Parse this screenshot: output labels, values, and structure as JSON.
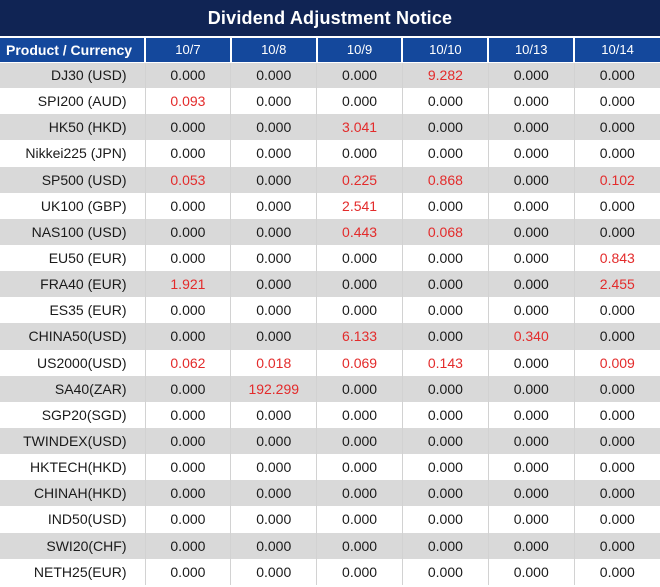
{
  "chart_data": {
    "type": "table",
    "title": "Dividend Adjustment Notice",
    "product_header": "Product / Currency",
    "date_headers": [
      "10/7",
      "10/8",
      "10/9",
      "10/10",
      "10/13",
      "10/14"
    ],
    "rows": [
      {
        "product": "DJ30 (USD)",
        "values": [
          "0.000",
          "0.000",
          "0.000",
          "9.282",
          "0.000",
          "0.000"
        ],
        "red_cols": [
          3
        ]
      },
      {
        "product": "SPI200 (AUD)",
        "values": [
          "0.093",
          "0.000",
          "0.000",
          "0.000",
          "0.000",
          "0.000"
        ],
        "red_cols": [
          0
        ]
      },
      {
        "product": "HK50 (HKD)",
        "values": [
          "0.000",
          "0.000",
          "3.041",
          "0.000",
          "0.000",
          "0.000"
        ],
        "red_cols": [
          2
        ]
      },
      {
        "product": "Nikkei225 (JPN)",
        "values": [
          "0.000",
          "0.000",
          "0.000",
          "0.000",
          "0.000",
          "0.000"
        ],
        "red_cols": []
      },
      {
        "product": "SP500 (USD)",
        "values": [
          "0.053",
          "0.000",
          "0.225",
          "0.868",
          "0.000",
          "0.102"
        ],
        "red_cols": [
          0,
          2,
          3,
          5
        ]
      },
      {
        "product": "UK100 (GBP)",
        "values": [
          "0.000",
          "0.000",
          "2.541",
          "0.000",
          "0.000",
          "0.000"
        ],
        "red_cols": [
          2
        ]
      },
      {
        "product": "NAS100 (USD)",
        "values": [
          "0.000",
          "0.000",
          "0.443",
          "0.068",
          "0.000",
          "0.000"
        ],
        "red_cols": [
          2,
          3
        ]
      },
      {
        "product": "EU50 (EUR)",
        "values": [
          "0.000",
          "0.000",
          "0.000",
          "0.000",
          "0.000",
          "0.843"
        ],
        "red_cols": [
          5
        ]
      },
      {
        "product": "FRA40 (EUR)",
        "values": [
          "1.921",
          "0.000",
          "0.000",
          "0.000",
          "0.000",
          "2.455"
        ],
        "red_cols": [
          0,
          5
        ]
      },
      {
        "product": "ES35 (EUR)",
        "values": [
          "0.000",
          "0.000",
          "0.000",
          "0.000",
          "0.000",
          "0.000"
        ],
        "red_cols": []
      },
      {
        "product": "CHINA50(USD)",
        "values": [
          "0.000",
          "0.000",
          "6.133",
          "0.000",
          "0.340",
          "0.000"
        ],
        "red_cols": [
          2,
          4
        ]
      },
      {
        "product": "US2000(USD)",
        "values": [
          "0.062",
          "0.018",
          "0.069",
          "0.143",
          "0.000",
          "0.009"
        ],
        "red_cols": [
          0,
          1,
          2,
          3,
          5
        ]
      },
      {
        "product": "SA40(ZAR)",
        "values": [
          "0.000",
          "192.299",
          "0.000",
          "0.000",
          "0.000",
          "0.000"
        ],
        "red_cols": [
          1
        ]
      },
      {
        "product": "SGP20(SGD)",
        "values": [
          "0.000",
          "0.000",
          "0.000",
          "0.000",
          "0.000",
          "0.000"
        ],
        "red_cols": []
      },
      {
        "product": "TWINDEX(USD)",
        "values": [
          "0.000",
          "0.000",
          "0.000",
          "0.000",
          "0.000",
          "0.000"
        ],
        "red_cols": []
      },
      {
        "product": "HKTECH(HKD)",
        "values": [
          "0.000",
          "0.000",
          "0.000",
          "0.000",
          "0.000",
          "0.000"
        ],
        "red_cols": []
      },
      {
        "product": "CHINAH(HKD)",
        "values": [
          "0.000",
          "0.000",
          "0.000",
          "0.000",
          "0.000",
          "0.000"
        ],
        "red_cols": []
      },
      {
        "product": "IND50(USD)",
        "values": [
          "0.000",
          "0.000",
          "0.000",
          "0.000",
          "0.000",
          "0.000"
        ],
        "red_cols": []
      },
      {
        "product": "SWI20(CHF)",
        "values": [
          "0.000",
          "0.000",
          "0.000",
          "0.000",
          "0.000",
          "0.000"
        ],
        "red_cols": []
      },
      {
        "product": "NETH25(EUR)",
        "values": [
          "0.000",
          "0.000",
          "0.000",
          "0.000",
          "0.000",
          "0.000"
        ],
        "red_cols": []
      }
    ]
  },
  "colors": {
    "title_bar_bg": "#102454",
    "header_bg": "#14489c",
    "header_text": "#ffffff",
    "stripe_gray": "#d9d9d9",
    "stripe_white": "#ffffff",
    "value_black": "#1a1a1a",
    "value_red": "#e32b2b"
  }
}
